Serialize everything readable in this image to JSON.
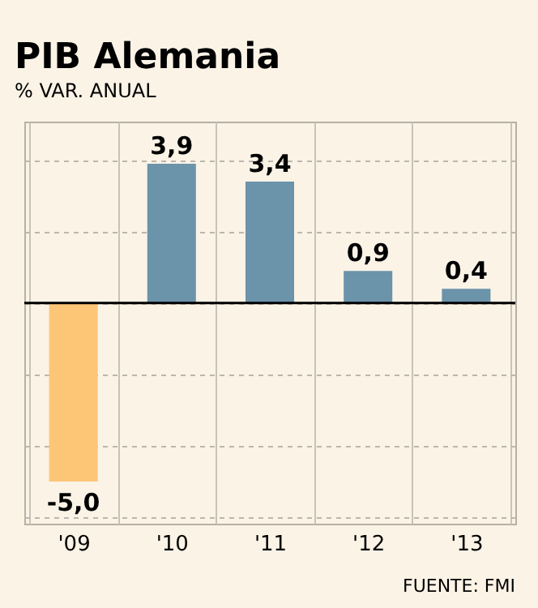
{
  "chart_data": {
    "type": "bar",
    "title": "PIB Alemania",
    "subtitle": "% VAR. ANUAL",
    "categories": [
      "'09",
      "'10",
      "'11",
      "'12",
      "'13"
    ],
    "values": [
      -5.0,
      3.9,
      3.4,
      0.9,
      0.4
    ],
    "value_labels": [
      "-5,0",
      "3,9",
      "3,4",
      "0,9",
      "0,4"
    ],
    "colors": [
      "#fdc677",
      "#6b93aa",
      "#6b93aa",
      "#6b93aa",
      "#6b93aa"
    ],
    "grid": true,
    "tick_labels": "x",
    "ref_lines": [
      {
        "axis": "y",
        "value": 0,
        "color": "#000000"
      }
    ],
    "annotations": [
      "FUENTE: FMI"
    ]
  }
}
